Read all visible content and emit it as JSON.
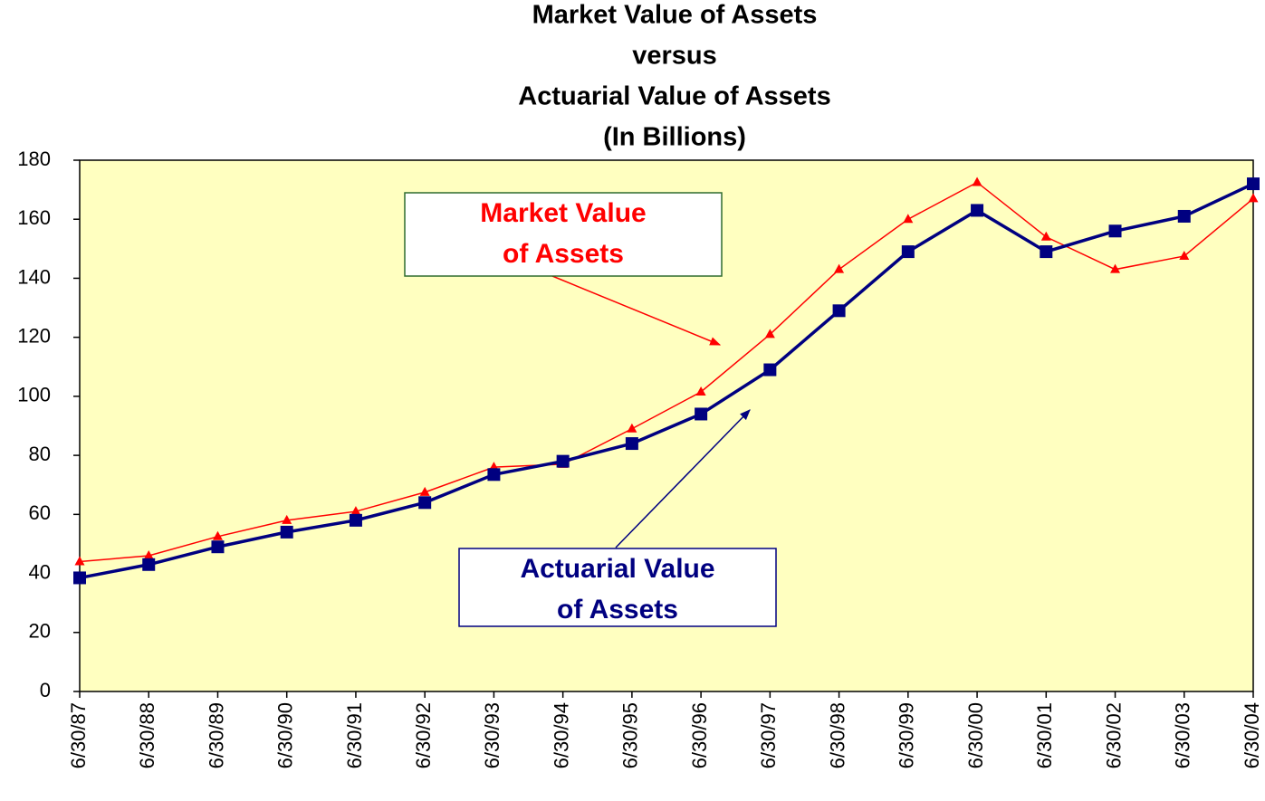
{
  "chart_data": {
    "type": "line",
    "title": [
      "Market Value of Assets",
      "versus",
      "Actuarial Value of Assets",
      "(In Billions)"
    ],
    "categories": [
      "6/30/87",
      "6/30/88",
      "6/30/89",
      "6/30/90",
      "6/30/91",
      "6/30/92",
      "6/30/93",
      "6/30/94",
      "6/30/95",
      "6/30/96",
      "6/30/97",
      "6/30/98",
      "6/30/99",
      "6/30/00",
      "6/30/01",
      "6/30/02",
      "6/30/03",
      "6/30/04"
    ],
    "series": [
      {
        "name": "Market Value of Assets",
        "color": "#ff0000",
        "marker": "triangle",
        "values": [
          44,
          46,
          52.5,
          58,
          61,
          67.5,
          76,
          77,
          89,
          101.5,
          121,
          143,
          160,
          172.5,
          154,
          143,
          147.5,
          167
        ]
      },
      {
        "name": "Actuarial Value of Assets",
        "color": "#000080",
        "marker": "square",
        "values": [
          38.5,
          43,
          49,
          54,
          58,
          64,
          73.5,
          78,
          84,
          94,
          109,
          129,
          149,
          163,
          149,
          156,
          161,
          172
        ]
      }
    ],
    "ylim": [
      0,
      180
    ],
    "yticks": [
      0,
      20,
      40,
      60,
      80,
      100,
      120,
      140,
      160,
      180
    ],
    "grid": false,
    "background": "#ffffc0",
    "annotations": [
      {
        "lines": [
          "Market Value",
          "of Assets"
        ],
        "color": "#ff0000",
        "border": "#2f6b2f"
      },
      {
        "lines": [
          "Actuarial Value",
          "of Assets"
        ],
        "color": "#000080",
        "border": "#000080"
      }
    ]
  }
}
